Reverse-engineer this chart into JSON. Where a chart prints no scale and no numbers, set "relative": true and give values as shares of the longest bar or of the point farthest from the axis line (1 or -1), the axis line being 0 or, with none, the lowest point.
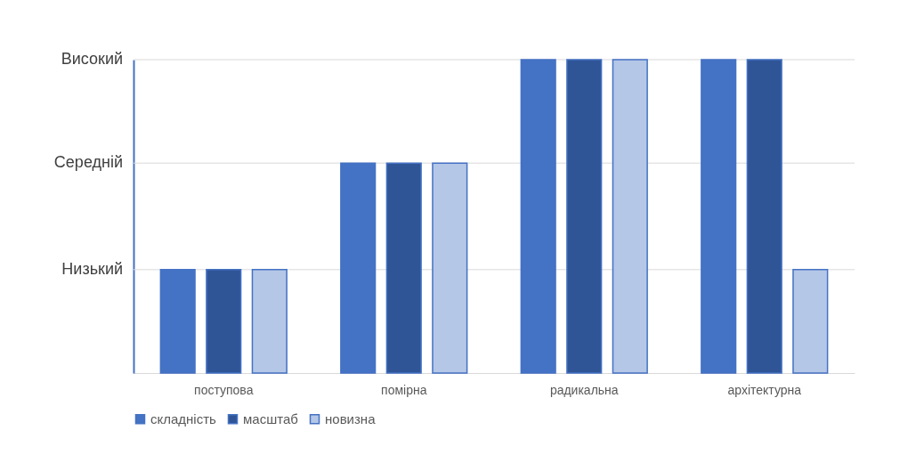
{
  "chart_data": {
    "type": "bar",
    "relative": true,
    "categories": [
      "поступова",
      "помірна",
      "радикальна",
      "архітектурна"
    ],
    "series": [
      {
        "name": "складність",
        "color": "#4472c4",
        "values": [
          0.33,
          0.67,
          1,
          1
        ]
      },
      {
        "name": "масштаб",
        "color": "#2f5597",
        "values": [
          0.33,
          0.67,
          1,
          1
        ]
      },
      {
        "name": "новизна",
        "color": "#b4c7e7",
        "values": [
          0.33,
          0.67,
          1,
          0.33
        ]
      }
    ],
    "ref_lines": [
      {
        "axis": "y",
        "value": 0.33,
        "label": "Низький",
        "color": "#d9d9d9"
      },
      {
        "axis": "y",
        "value": 0.67,
        "label": "Середній",
        "color": "#d9d9d9"
      },
      {
        "axis": "y",
        "value": 1,
        "label": "Високий",
        "color": "#d9d9d9"
      }
    ],
    "legend": "bottom"
  }
}
